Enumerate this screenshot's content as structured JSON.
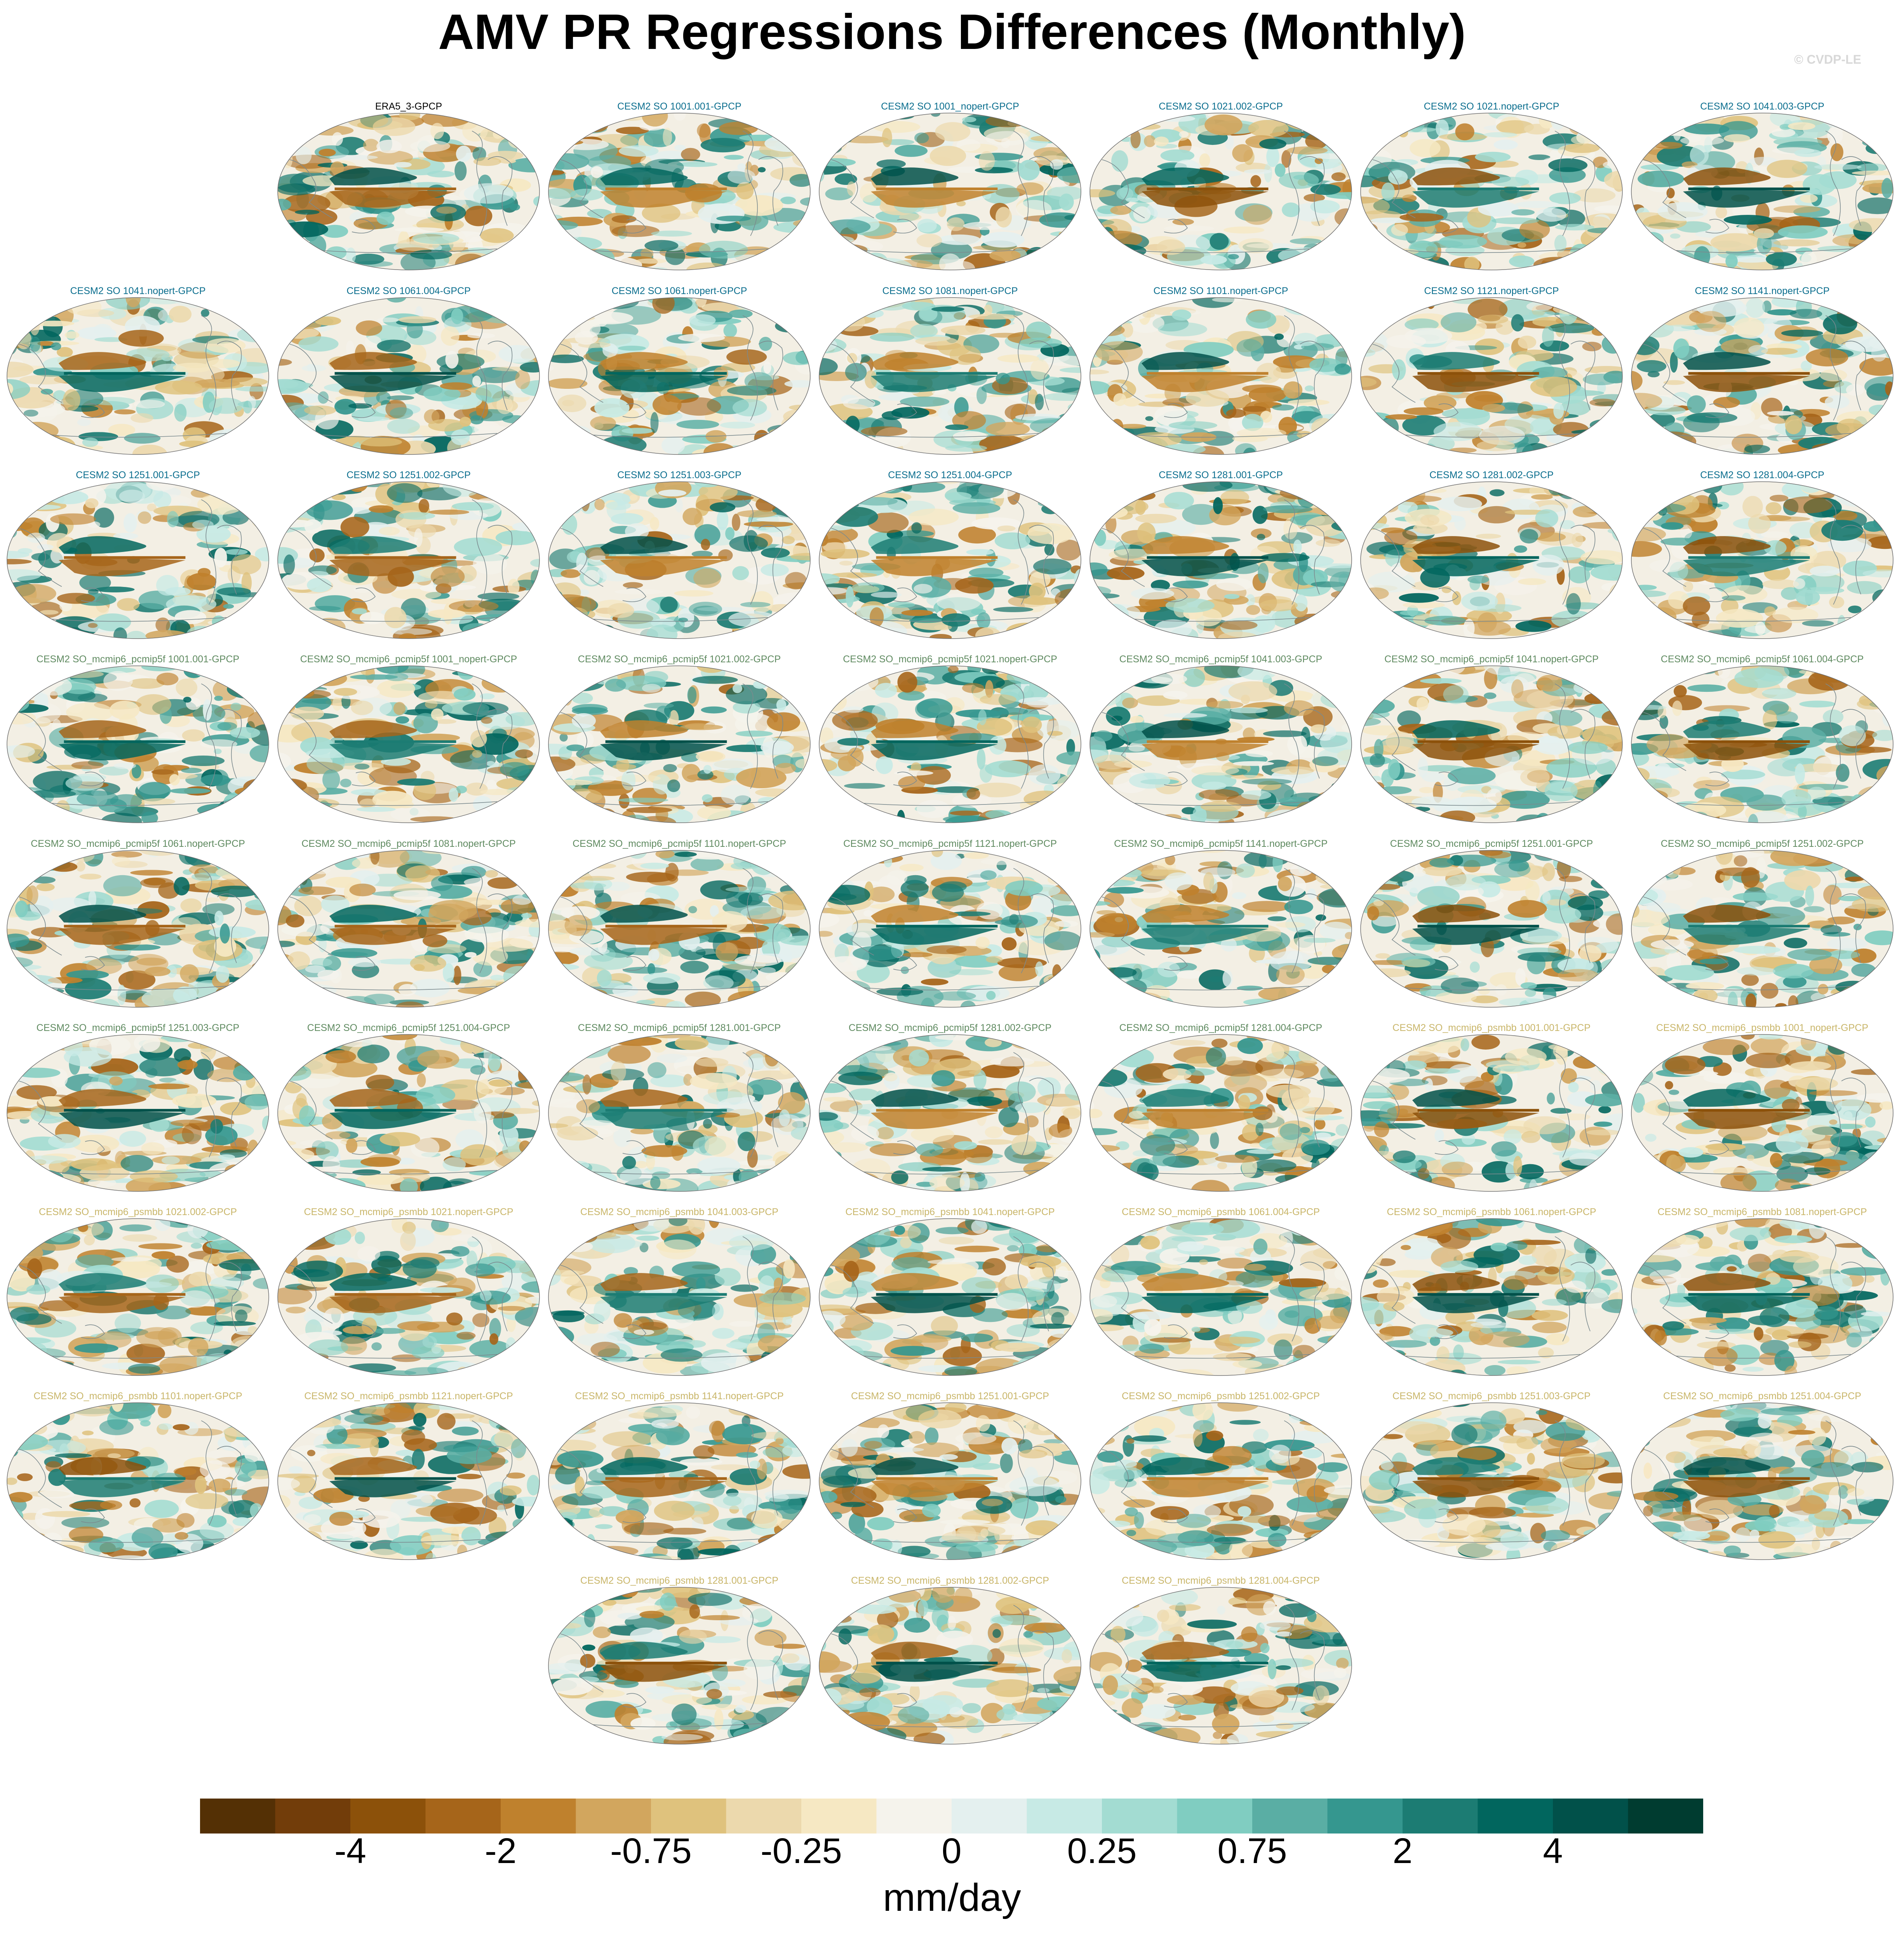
{
  "title": "AMV PR Regressions Differences (Monthly)",
  "watermark": "© CVDP-LE",
  "group_colors": {
    "obs": "#000000",
    "cesm2_so": "#0b6e8e",
    "pcmip5f": "#5f8a60",
    "psmbb": "#c9b66a"
  },
  "colorbar": {
    "colors": [
      "#543005",
      "#723d0a",
      "#8c510a",
      "#a6651a",
      "#bf812d",
      "#d2a65e",
      "#dfc27d",
      "#ecd9ad",
      "#f6e8c3",
      "#f5f3ec",
      "#e4f0ef",
      "#c7eae5",
      "#a3dcd2",
      "#80cdc1",
      "#5aaea4",
      "#35978f",
      "#1c7c73",
      "#01665e",
      "#01514a",
      "#003c30"
    ],
    "labels": [
      "-4",
      "-2",
      "-0.75",
      "-0.25",
      "0",
      "0.25",
      "0.75",
      "2",
      "4"
    ],
    "units": "mm/day"
  },
  "panels": [
    {
      "title": "ERA5_3-GPCP",
      "group": "obs",
      "seed": 1
    },
    {
      "title": "CESM2 SO 1001.001-GPCP",
      "group": "cesm2_so",
      "seed": 2
    },
    {
      "title": "CESM2 SO 1001_nopert-GPCP",
      "group": "cesm2_so",
      "seed": 3
    },
    {
      "title": "CESM2 SO 1021.002-GPCP",
      "group": "cesm2_so",
      "seed": 4
    },
    {
      "title": "CESM2 SO 1021.nopert-GPCP",
      "group": "cesm2_so",
      "seed": 5
    },
    {
      "title": "CESM2 SO 1041.003-GPCP",
      "group": "cesm2_so",
      "seed": 6
    },
    {
      "title": "CESM2 SO 1041.nopert-GPCP",
      "group": "cesm2_so",
      "seed": 7
    },
    {
      "title": "CESM2 SO 1061.004-GPCP",
      "group": "cesm2_so",
      "seed": 8
    },
    {
      "title": "CESM2 SO 1061.nopert-GPCP",
      "group": "cesm2_so",
      "seed": 9
    },
    {
      "title": "CESM2 SO 1081.nopert-GPCP",
      "group": "cesm2_so",
      "seed": 10
    },
    {
      "title": "CESM2 SO 1101.nopert-GPCP",
      "group": "cesm2_so",
      "seed": 11
    },
    {
      "title": "CESM2 SO 1121.nopert-GPCP",
      "group": "cesm2_so",
      "seed": 12
    },
    {
      "title": "CESM2 SO 1141.nopert-GPCP",
      "group": "cesm2_so",
      "seed": 13
    },
    {
      "title": "CESM2 SO 1251.001-GPCP",
      "group": "cesm2_so",
      "seed": 14
    },
    {
      "title": "CESM2 SO 1251.002-GPCP",
      "group": "cesm2_so",
      "seed": 15
    },
    {
      "title": "CESM2 SO 1251.003-GPCP",
      "group": "cesm2_so",
      "seed": 16
    },
    {
      "title": "CESM2 SO 1251.004-GPCP",
      "group": "cesm2_so",
      "seed": 17
    },
    {
      "title": "CESM2 SO 1281.001-GPCP",
      "group": "cesm2_so",
      "seed": 18
    },
    {
      "title": "CESM2 SO 1281.002-GPCP",
      "group": "cesm2_so",
      "seed": 19
    },
    {
      "title": "CESM2 SO 1281.004-GPCP",
      "group": "cesm2_so",
      "seed": 20
    },
    {
      "title": "CESM2 SO_mcmip6_pcmip5f 1001.001-GPCP",
      "group": "pcmip5f",
      "seed": 21
    },
    {
      "title": "CESM2 SO_mcmip6_pcmip5f 1001_nopert-GPCP",
      "group": "pcmip5f",
      "seed": 22
    },
    {
      "title": "CESM2 SO_mcmip6_pcmip5f 1021.002-GPCP",
      "group": "pcmip5f",
      "seed": 23
    },
    {
      "title": "CESM2 SO_mcmip6_pcmip5f 1021.nopert-GPCP",
      "group": "pcmip5f",
      "seed": 24
    },
    {
      "title": "CESM2 SO_mcmip6_pcmip5f 1041.003-GPCP",
      "group": "pcmip5f",
      "seed": 25
    },
    {
      "title": "CESM2 SO_mcmip6_pcmip5f 1041.nopert-GPCP",
      "group": "pcmip5f",
      "seed": 26
    },
    {
      "title": "CESM2 SO_mcmip6_pcmip5f 1061.004-GPCP",
      "group": "pcmip5f",
      "seed": 27
    },
    {
      "title": "CESM2 SO_mcmip6_pcmip5f 1061.nopert-GPCP",
      "group": "pcmip5f",
      "seed": 28
    },
    {
      "title": "CESM2 SO_mcmip6_pcmip5f 1081.nopert-GPCP",
      "group": "pcmip5f",
      "seed": 29
    },
    {
      "title": "CESM2 SO_mcmip6_pcmip5f 1101.nopert-GPCP",
      "group": "pcmip5f",
      "seed": 30
    },
    {
      "title": "CESM2 SO_mcmip6_pcmip5f 1121.nopert-GPCP",
      "group": "pcmip5f",
      "seed": 31
    },
    {
      "title": "CESM2 SO_mcmip6_pcmip5f 1141.nopert-GPCP",
      "group": "pcmip5f",
      "seed": 32
    },
    {
      "title": "CESM2 SO_mcmip6_pcmip5f 1251.001-GPCP",
      "group": "pcmip5f",
      "seed": 33
    },
    {
      "title": "CESM2 SO_mcmip6_pcmip5f 1251.002-GPCP",
      "group": "pcmip5f",
      "seed": 34
    },
    {
      "title": "CESM2 SO_mcmip6_pcmip5f 1251.003-GPCP",
      "group": "pcmip5f",
      "seed": 35
    },
    {
      "title": "CESM2 SO_mcmip6_pcmip5f 1251.004-GPCP",
      "group": "pcmip5f",
      "seed": 36
    },
    {
      "title": "CESM2 SO_mcmip6_pcmip5f 1281.001-GPCP",
      "group": "pcmip5f",
      "seed": 37
    },
    {
      "title": "CESM2 SO_mcmip6_pcmip5f 1281.002-GPCP",
      "group": "pcmip5f",
      "seed": 38
    },
    {
      "title": "CESM2 SO_mcmip6_pcmip5f 1281.004-GPCP",
      "group": "pcmip5f",
      "seed": 39
    },
    {
      "title": "CESM2 SO_mcmip6_psmbb 1001.001-GPCP",
      "group": "psmbb",
      "seed": 40
    },
    {
      "title": "CESM2 SO_mcmip6_psmbb 1001_nopert-GPCP",
      "group": "psmbb",
      "seed": 41
    },
    {
      "title": "CESM2 SO_mcmip6_psmbb 1021.002-GPCP",
      "group": "psmbb",
      "seed": 42
    },
    {
      "title": "CESM2 SO_mcmip6_psmbb 1021.nopert-GPCP",
      "group": "psmbb",
      "seed": 43
    },
    {
      "title": "CESM2 SO_mcmip6_psmbb 1041.003-GPCP",
      "group": "psmbb",
      "seed": 44
    },
    {
      "title": "CESM2 SO_mcmip6_psmbb 1041.nopert-GPCP",
      "group": "psmbb",
      "seed": 45
    },
    {
      "title": "CESM2 SO_mcmip6_psmbb 1061.004-GPCP",
      "group": "psmbb",
      "seed": 46
    },
    {
      "title": "CESM2 SO_mcmip6_psmbb 1061.nopert-GPCP",
      "group": "psmbb",
      "seed": 47
    },
    {
      "title": "CESM2 SO_mcmip6_psmbb 1081.nopert-GPCP",
      "group": "psmbb",
      "seed": 48
    },
    {
      "title": "CESM2 SO_mcmip6_psmbb 1101.nopert-GPCP",
      "group": "psmbb",
      "seed": 49
    },
    {
      "title": "CESM2 SO_mcmip6_psmbb 1121.nopert-GPCP",
      "group": "psmbb",
      "seed": 50
    },
    {
      "title": "CESM2 SO_mcmip6_psmbb 1141.nopert-GPCP",
      "group": "psmbb",
      "seed": 51
    },
    {
      "title": "CESM2 SO_mcmip6_psmbb 1251.001-GPCP",
      "group": "psmbb",
      "seed": 52
    },
    {
      "title": "CESM2 SO_mcmip6_psmbb 1251.002-GPCP",
      "group": "psmbb",
      "seed": 53
    },
    {
      "title": "CESM2 SO_mcmip6_psmbb 1251.003-GPCP",
      "group": "psmbb",
      "seed": 54
    },
    {
      "title": "CESM2 SO_mcmip6_psmbb 1251.004-GPCP",
      "group": "psmbb",
      "seed": 55
    },
    {
      "title": "CESM2 SO_mcmip6_psmbb 1281.001-GPCP",
      "group": "psmbb",
      "seed": 56
    },
    {
      "title": "CESM2 SO_mcmip6_psmbb 1281.002-GPCP",
      "group": "psmbb",
      "seed": 57
    },
    {
      "title": "CESM2 SO_mcmip6_psmbb 1281.004-GPCP",
      "group": "psmbb",
      "seed": 58
    }
  ]
}
